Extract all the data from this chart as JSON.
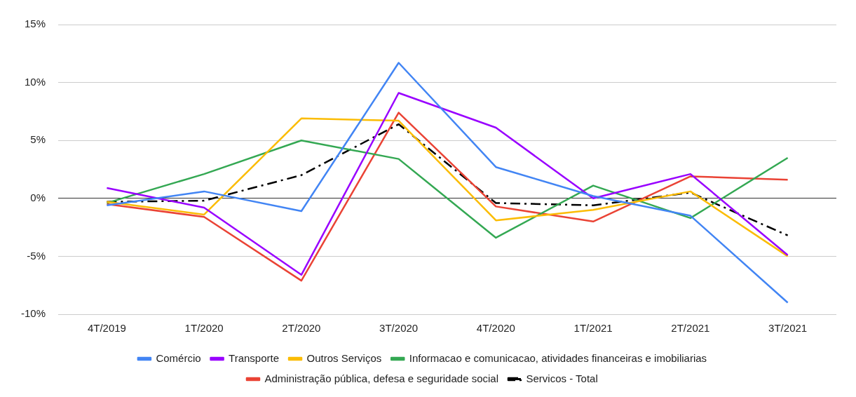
{
  "chart_data": {
    "type": "line",
    "categories": [
      "4T/2019",
      "1T/2020",
      "2T/2020",
      "3T/2020",
      "4T/2020",
      "1T/2021",
      "2T/2021",
      "3T/2021"
    ],
    "series": [
      {
        "name": "Comércio",
        "color": "#4285f4",
        "values": [
          -0.6,
          0.6,
          -1.1,
          11.7,
          2.7,
          0.2,
          -1.5,
          -9.0
        ]
      },
      {
        "name": "Transporte",
        "color": "#9900ff",
        "values": [
          0.9,
          -0.8,
          -6.6,
          9.1,
          6.1,
          0.0,
          2.1,
          -4.9
        ]
      },
      {
        "name": "Outros Serviços",
        "color": "#fbbc04",
        "values": [
          -0.3,
          -1.4,
          6.9,
          6.7,
          -1.9,
          -1.0,
          0.6,
          -5.0
        ]
      },
      {
        "name": "Informacao e comunicacao, atividades financeiras e imobiliarias",
        "color": "#34a853",
        "values": [
          -0.4,
          2.1,
          5.0,
          3.4,
          -3.4,
          1.1,
          -1.7,
          3.5
        ]
      },
      {
        "name": "Administração pública, defesa e seguridade social",
        "color": "#ea4335",
        "values": [
          -0.5,
          -1.6,
          -7.1,
          7.4,
          -0.7,
          -2.0,
          1.9,
          1.6
        ]
      },
      {
        "name": "Servicos - Total",
        "color": "#000000",
        "values": [
          -0.3,
          -0.2,
          2.0,
          6.4,
          -0.4,
          -0.6,
          0.5,
          -3.2
        ],
        "line_style": "dashed"
      }
    ],
    "ylim": [
      -10,
      15
    ],
    "yticks": [
      {
        "value": -10,
        "label": "-10%"
      },
      {
        "value": -5,
        "label": "-5%"
      },
      {
        "value": 0,
        "label": "0%"
      },
      {
        "value": 5,
        "label": "5%"
      },
      {
        "value": 10,
        "label": "10%"
      },
      {
        "value": 15,
        "label": "15%"
      }
    ],
    "grid": "y",
    "legend": "bottom",
    "marker": "none"
  }
}
